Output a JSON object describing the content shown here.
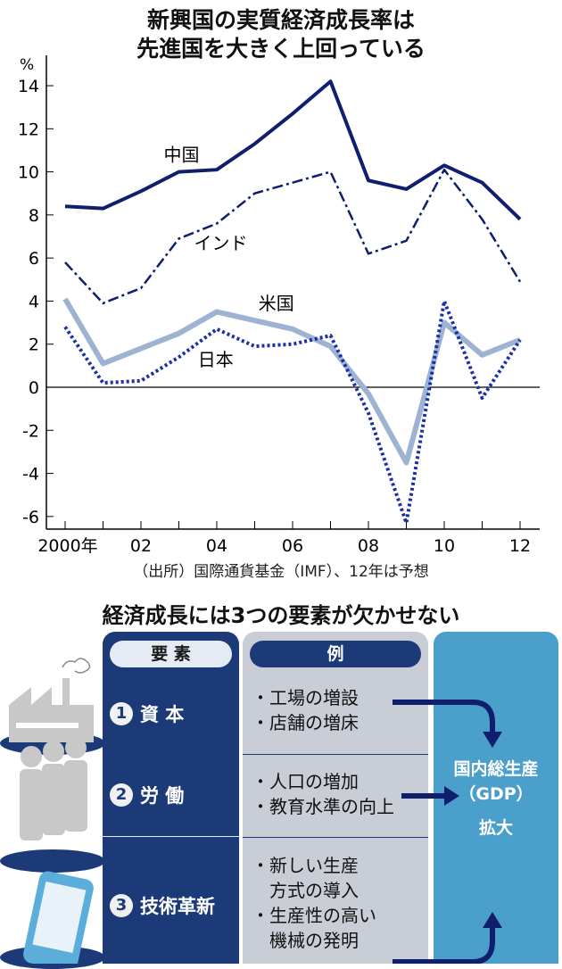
{
  "header": {
    "title_line1": "新興国の実質経済成長率は",
    "title_line2": "先進国を大きく上回っている"
  },
  "chart_data": {
    "type": "line",
    "ylabel": "%",
    "ylim": [
      -6.6,
      15
    ],
    "yticks": [
      -6,
      -4,
      -2,
      0,
      2,
      4,
      6,
      8,
      10,
      12,
      14
    ],
    "x": [
      2000,
      2001,
      2002,
      2003,
      2004,
      2005,
      2006,
      2007,
      2008,
      2009,
      2010,
      2011,
      2012
    ],
    "xtick_labels": [
      {
        "x": 2000,
        "label": "2000年"
      },
      {
        "x": 2002,
        "label": "02"
      },
      {
        "x": 2004,
        "label": "04"
      },
      {
        "x": 2006,
        "label": "06"
      },
      {
        "x": 2008,
        "label": "08"
      },
      {
        "x": 2010,
        "label": "10"
      },
      {
        "x": 2012,
        "label": "12"
      }
    ],
    "grid": false,
    "series": [
      {
        "name": "中国",
        "style": "solid",
        "color": "#0f1f6e",
        "values": [
          8.4,
          8.3,
          9.1,
          10.0,
          10.1,
          11.3,
          12.7,
          14.2,
          9.6,
          9.2,
          10.3,
          9.5,
          7.8
        ]
      },
      {
        "name": "インド",
        "style": "dash-dot",
        "color": "#0f1f6e",
        "values": [
          5.8,
          3.9,
          4.6,
          6.9,
          7.6,
          9.0,
          9.5,
          10.0,
          6.2,
          6.8,
          10.1,
          7.8,
          4.9
        ]
      },
      {
        "name": "米国",
        "style": "solid-thick",
        "color": "#9db3d1",
        "values": [
          4.1,
          1.1,
          1.8,
          2.5,
          3.5,
          3.1,
          2.7,
          1.9,
          -0.3,
          -3.5,
          3.0,
          1.5,
          2.2
        ]
      },
      {
        "name": "日本",
        "style": "dotted",
        "color": "#1a2fa8",
        "values": [
          2.8,
          0.2,
          0.3,
          1.4,
          2.7,
          1.9,
          2.0,
          2.4,
          -1.2,
          -6.3,
          4.0,
          -0.5,
          2.2
        ]
      }
    ]
  },
  "source": "（出所）国際通貨基金（IMF）、12年は予想",
  "diagram": {
    "title": "経済成長には3つの要素が欠かせない",
    "col_elements": "要 素",
    "col_examples": "例",
    "rows": [
      {
        "num": "1",
        "label": "資 本",
        "icon": "factory-icon",
        "examples": [
          "・工場の増設",
          "・店舗の増床"
        ]
      },
      {
        "num": "2",
        "label": "労 働",
        "icon": "people-icon",
        "examples": [
          "・人口の増加",
          "・教育水準の向上"
        ]
      },
      {
        "num": "3",
        "label": "技術革新",
        "icon": "smartphone-icon",
        "examples": [
          "・新しい生産",
          "　方式の導入",
          "・生産性の高い",
          "　機械の発明"
        ]
      }
    ],
    "result_line1": "国内総生産",
    "result_line2": "（GDP）",
    "result_line3": "拡大",
    "colors": {
      "navy": "#1d3a78",
      "gray": "#c9ced6",
      "blue": "#4b9fcb"
    }
  }
}
